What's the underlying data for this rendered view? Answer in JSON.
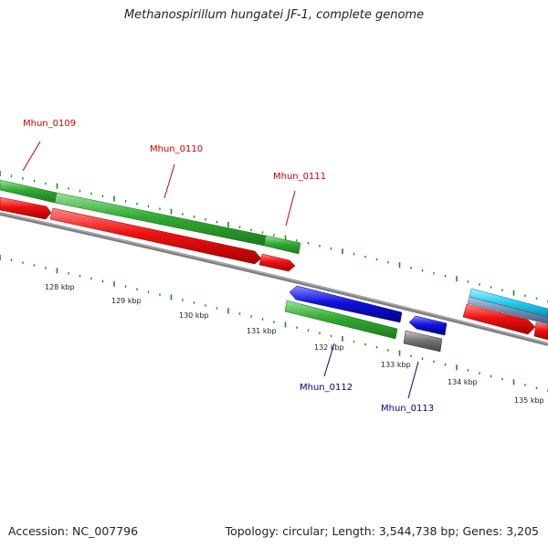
{
  "title": "Methanospirillum hungatei JF-1, complete genome",
  "footer": {
    "accession_label": "Accession:",
    "accession": "NC_007796",
    "topology_label": "Topology:",
    "topology": "circular",
    "length_label": "Length:",
    "length": "3,544,738 bp",
    "genes_label": "Genes:",
    "genes": "3,205"
  },
  "scale": {
    "unit": "kbp",
    "ticks": [
      "128 kbp",
      "129 kbp",
      "130 kbp",
      "131 kbp",
      "132 kbp",
      "133 kbp",
      "134 kbp",
      "135 kbp"
    ]
  },
  "gene_labels": [
    {
      "name": "Mhun_0109",
      "strand": "forward"
    },
    {
      "name": "Mhun_0110",
      "strand": "forward"
    },
    {
      "name": "Mhun_0111",
      "strand": "forward"
    },
    {
      "name": "Mhun_0112",
      "strand": "reverse"
    },
    {
      "name": "Mhun_0113",
      "strand": "reverse"
    }
  ],
  "colors": {
    "forward_label": "#cc0000",
    "reverse_label": "#000099",
    "cds_forward": "#ee1111",
    "cds_reverse": "#1111dd",
    "gene_track": "#33aa33",
    "rna_track": "#22ccee",
    "pseudo_gene": "#777777",
    "backbone": "#808080",
    "tick": "#228822"
  }
}
